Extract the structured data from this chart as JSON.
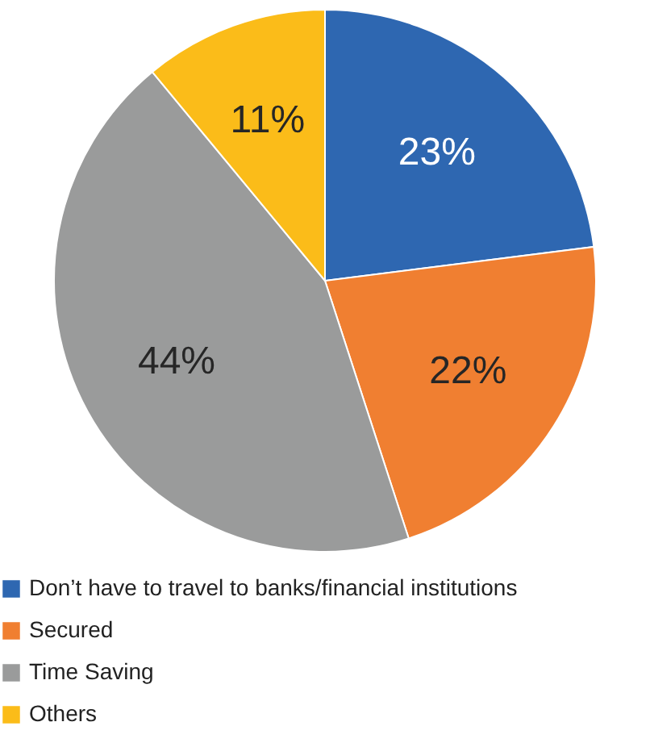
{
  "chart_data": {
    "type": "pie",
    "categories": [
      "Don’t have to travel to banks/financial institutions",
      "Secured",
      "Time Saving",
      "Others"
    ],
    "values": [
      23,
      22,
      44,
      11
    ],
    "colors": [
      "#2e67b1",
      "#f07f31",
      "#9a9b9b",
      "#fbbc19"
    ],
    "value_labels": [
      "23%",
      "22%",
      "44%",
      "11%"
    ],
    "legend": "bottom"
  }
}
